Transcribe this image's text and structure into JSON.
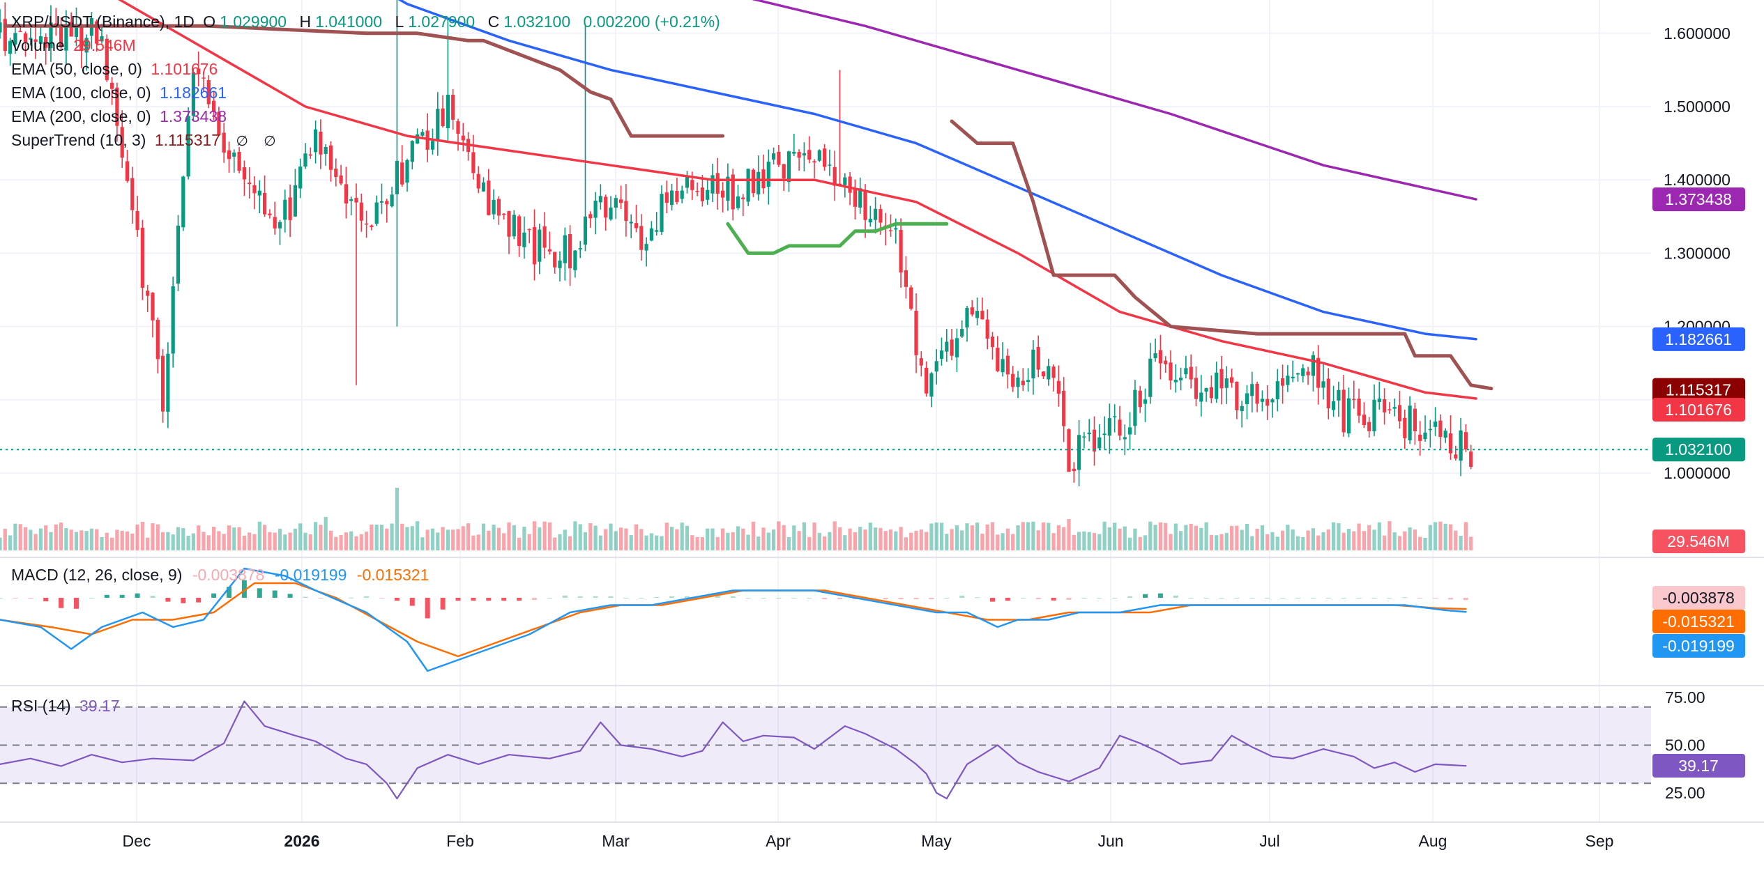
{
  "header": {
    "symbol": "XRP/USDT (Binance), 1D",
    "open_label": "O",
    "open": "1.029900",
    "high_label": "H",
    "high": "1.041000",
    "low_label": "L",
    "low": "1.027900",
    "close_label": "C",
    "close": "1.032100",
    "change": "0.002200 (+0.21%)"
  },
  "indicators": {
    "volume": {
      "label": "Volume",
      "value": "29.546M"
    },
    "ema50": {
      "label": "EMA (50, close, 0)",
      "value": "1.101676"
    },
    "ema100": {
      "label": "EMA (100, close, 0)",
      "value": "1.182661"
    },
    "ema200": {
      "label": "EMA (200, close, 0)",
      "value": "1.373438"
    },
    "supertrend": {
      "label": "SuperTrend (10, 3)",
      "value": "1.115317",
      "glyph1": "∅",
      "glyph2": "∅"
    },
    "macd": {
      "label": "MACD (12, 26, close, 9)",
      "hist": "-0.003878",
      "macd": "-0.019199",
      "signal": "-0.015321"
    },
    "rsi": {
      "label": "RSI (14)",
      "value": "39.17"
    }
  },
  "colors": {
    "up": "#089981",
    "down": "#f23645",
    "ema50": "#f23645",
    "ema100": "#2962ff",
    "ema200": "#9c27b0",
    "supertrend_down": "#a05252",
    "supertrend_up": "#4caf50",
    "macd": "#2196f3",
    "signal": "#ff6d00",
    "rsi": "#7e57c2"
  },
  "chart_data": [
    {
      "type": "candlestick",
      "title": "XRP/USDT (Binance), 1D",
      "x_ticks": [
        "Dec",
        "2026",
        "Feb",
        "Mar",
        "Apr",
        "May",
        "Jun",
        "Jul",
        "Aug",
        "Sep"
      ],
      "y_ticks": [
        "1.000000",
        "1.100000",
        "1.200000",
        "1.300000",
        "1.400000",
        "1.500000",
        "1.600000"
      ],
      "ylim": [
        0.97,
        1.64
      ],
      "last_price": "1.032100",
      "price_path": [
        [
          0,
          1.6
        ],
        [
          20,
          1.6
        ],
        [
          32,
          1.1
        ],
        [
          38,
          1.55
        ],
        [
          48,
          1.38
        ],
        [
          56,
          1.35
        ],
        [
          62,
          1.45
        ],
        [
          72,
          1.35
        ],
        [
          80,
          1.42
        ],
        [
          88,
          1.5
        ],
        [
          96,
          1.36
        ],
        [
          104,
          1.31
        ],
        [
          112,
          1.3
        ],
        [
          118,
          1.38
        ],
        [
          126,
          1.32
        ],
        [
          134,
          1.4
        ],
        [
          144,
          1.38
        ],
        [
          152,
          1.42
        ],
        [
          160,
          1.44
        ],
        [
          168,
          1.38
        ],
        [
          176,
          1.32
        ],
        [
          182,
          1.1
        ],
        [
          190,
          1.22
        ],
        [
          198,
          1.13
        ],
        [
          206,
          1.16
        ],
        [
          210,
          1.02
        ],
        [
          220,
          1.06
        ],
        [
          228,
          1.16
        ],
        [
          236,
          1.12
        ],
        [
          248,
          1.1
        ],
        [
          256,
          1.16
        ],
        [
          264,
          1.08
        ],
        [
          272,
          1.08
        ],
        [
          280,
          1.06
        ],
        [
          288,
          1.032
        ]
      ],
      "ema50": [
        [
          0,
          1.72
        ],
        [
          20,
          1.66
        ],
        [
          40,
          1.58
        ],
        [
          60,
          1.5
        ],
        [
          80,
          1.46
        ],
        [
          100,
          1.44
        ],
        [
          120,
          1.42
        ],
        [
          140,
          1.4
        ],
        [
          160,
          1.4
        ],
        [
          180,
          1.37
        ],
        [
          200,
          1.3
        ],
        [
          220,
          1.22
        ],
        [
          240,
          1.18
        ],
        [
          260,
          1.15
        ],
        [
          280,
          1.11
        ],
        [
          290,
          1.101676
        ]
      ],
      "ema100": [
        [
          60,
          1.72
        ],
        [
          80,
          1.64
        ],
        [
          100,
          1.59
        ],
        [
          120,
          1.55
        ],
        [
          140,
          1.52
        ],
        [
          160,
          1.49
        ],
        [
          180,
          1.45
        ],
        [
          200,
          1.39
        ],
        [
          220,
          1.33
        ],
        [
          240,
          1.27
        ],
        [
          260,
          1.22
        ],
        [
          280,
          1.19
        ],
        [
          290,
          1.182661
        ]
      ],
      "ema200": [
        [
          110,
          1.72
        ],
        [
          140,
          1.66
        ],
        [
          170,
          1.61
        ],
        [
          200,
          1.55
        ],
        [
          230,
          1.49
        ],
        [
          260,
          1.42
        ],
        [
          290,
          1.373438
        ]
      ],
      "supertrend": [
        {
          "trend": "down",
          "points": [
            [
              1,
              1.61
            ],
            [
              40,
              1.61
            ],
            [
              41,
              1.61
            ],
            [
              72,
              1.6
            ],
            [
              75,
              1.6
            ],
            [
              82,
              1.6
            ],
            [
              92,
              1.59
            ],
            [
              95,
              1.59
            ],
            [
              110,
              1.55
            ],
            [
              116,
              1.52
            ],
            [
              120,
              1.51
            ],
            [
              124,
              1.46
            ],
            [
              142,
              1.46
            ]
          ]
        },
        {
          "trend": "up",
          "points": [
            [
              143,
              1.34
            ],
            [
              147,
              1.3
            ],
            [
              152,
              1.3
            ],
            [
              155,
              1.31
            ],
            [
              165,
              1.31
            ],
            [
              168,
              1.33
            ],
            [
              172,
              1.33
            ],
            [
              176,
              1.34
            ],
            [
              186,
              1.34
            ]
          ]
        },
        {
          "trend": "down",
          "points": [
            [
              187,
              1.48
            ],
            [
              192,
              1.45
            ],
            [
              194,
              1.45
            ],
            [
              195,
              1.45
            ],
            [
              199,
              1.45
            ],
            [
              203,
              1.37
            ],
            [
              207,
              1.27
            ],
            [
              219,
              1.27
            ],
            [
              223,
              1.24
            ],
            [
              230,
              1.2
            ],
            [
              247,
              1.19
            ],
            [
              255,
              1.19
            ],
            [
              276,
              1.19
            ],
            [
              278,
              1.16
            ],
            [
              285,
              1.16
            ],
            [
              289,
              1.12
            ],
            [
              293,
              1.115317
            ]
          ]
        }
      ]
    },
    {
      "type": "bar",
      "name": "Volume",
      "last": "29.546M",
      "spikes": [
        [
          78,
          3.0
        ],
        [
          64,
          1.6
        ],
        [
          116,
          1.3
        ],
        [
          170,
          1.0
        ],
        [
          188,
          1.2
        ],
        [
          200,
          1.2
        ],
        [
          208,
          1.2
        ],
        [
          210,
          1.5
        ]
      ]
    },
    {
      "type": "line",
      "name": "MACD (12, 26, close, 9)",
      "hist_last": "-0.003878",
      "macd_last": "-0.019199",
      "signal_last": "-0.015321",
      "macd": [
        [
          0,
          -0.03
        ],
        [
          8,
          -0.04
        ],
        [
          14,
          -0.07
        ],
        [
          20,
          -0.04
        ],
        [
          28,
          -0.02
        ],
        [
          34,
          -0.04
        ],
        [
          40,
          -0.03
        ],
        [
          48,
          0.04
        ],
        [
          56,
          0.03
        ],
        [
          62,
          0.01
        ],
        [
          72,
          -0.02
        ],
        [
          80,
          -0.06
        ],
        [
          84,
          -0.1
        ],
        [
          88,
          -0.09
        ],
        [
          96,
          -0.07
        ],
        [
          104,
          -0.05
        ],
        [
          112,
          -0.02
        ],
        [
          120,
          -0.01
        ],
        [
          128,
          -0.01
        ],
        [
          136,
          0.0
        ],
        [
          144,
          0.01
        ],
        [
          152,
          0.01
        ],
        [
          160,
          0.01
        ],
        [
          168,
          0.0
        ],
        [
          176,
          -0.01
        ],
        [
          184,
          -0.02
        ],
        [
          190,
          -0.02
        ],
        [
          196,
          -0.04
        ],
        [
          200,
          -0.03
        ],
        [
          206,
          -0.03
        ],
        [
          212,
          -0.02
        ],
        [
          220,
          -0.02
        ],
        [
          228,
          -0.01
        ],
        [
          236,
          -0.01
        ],
        [
          244,
          -0.01
        ],
        [
          252,
          -0.01
        ],
        [
          260,
          -0.01
        ],
        [
          268,
          -0.01
        ],
        [
          276,
          -0.01
        ],
        [
          284,
          -0.017
        ],
        [
          288,
          -0.019199
        ]
      ],
      "signal": [
        [
          0,
          -0.03
        ],
        [
          10,
          -0.04
        ],
        [
          18,
          -0.05
        ],
        [
          26,
          -0.03
        ],
        [
          34,
          -0.03
        ],
        [
          42,
          -0.02
        ],
        [
          50,
          0.02
        ],
        [
          58,
          0.02
        ],
        [
          66,
          0.0
        ],
        [
          74,
          -0.03
        ],
        [
          82,
          -0.06
        ],
        [
          90,
          -0.08
        ],
        [
          98,
          -0.06
        ],
        [
          106,
          -0.04
        ],
        [
          114,
          -0.02
        ],
        [
          122,
          -0.01
        ],
        [
          130,
          -0.01
        ],
        [
          138,
          0.0
        ],
        [
          146,
          0.01
        ],
        [
          154,
          0.01
        ],
        [
          162,
          0.01
        ],
        [
          170,
          0.0
        ],
        [
          178,
          -0.01
        ],
        [
          186,
          -0.02
        ],
        [
          194,
          -0.03
        ],
        [
          202,
          -0.03
        ],
        [
          210,
          -0.02
        ],
        [
          218,
          -0.02
        ],
        [
          226,
          -0.02
        ],
        [
          234,
          -0.01
        ],
        [
          242,
          -0.01
        ],
        [
          250,
          -0.01
        ],
        [
          258,
          -0.01
        ],
        [
          266,
          -0.01
        ],
        [
          274,
          -0.01
        ],
        [
          282,
          -0.014
        ],
        [
          288,
          -0.015321
        ]
      ]
    },
    {
      "type": "line",
      "name": "RSI (14)",
      "last": "39.17",
      "y_ticks": [
        "25.00",
        "50.00",
        "75.00"
      ],
      "bands": [
        30,
        50,
        70
      ],
      "rsi": [
        [
          0,
          40
        ],
        [
          6,
          43
        ],
        [
          12,
          39
        ],
        [
          18,
          45
        ],
        [
          24,
          41
        ],
        [
          30,
          43
        ],
        [
          38,
          42
        ],
        [
          44,
          51
        ],
        [
          48,
          73
        ],
        [
          52,
          60
        ],
        [
          58,
          55
        ],
        [
          62,
          52
        ],
        [
          68,
          43
        ],
        [
          72,
          40
        ],
        [
          76,
          30
        ],
        [
          78,
          22
        ],
        [
          82,
          38
        ],
        [
          88,
          45
        ],
        [
          94,
          40
        ],
        [
          100,
          45
        ],
        [
          108,
          43
        ],
        [
          114,
          47
        ],
        [
          118,
          62
        ],
        [
          122,
          50
        ],
        [
          128,
          48
        ],
        [
          134,
          44
        ],
        [
          138,
          47
        ],
        [
          142,
          62
        ],
        [
          146,
          52
        ],
        [
          150,
          55
        ],
        [
          156,
          54
        ],
        [
          160,
          48
        ],
        [
          166,
          60
        ],
        [
          170,
          56
        ],
        [
          176,
          48
        ],
        [
          180,
          40
        ],
        [
          182,
          35
        ],
        [
          184,
          25
        ],
        [
          186,
          22
        ],
        [
          190,
          40
        ],
        [
          196,
          50
        ],
        [
          200,
          41
        ],
        [
          204,
          36
        ],
        [
          210,
          31
        ],
        [
          216,
          38
        ],
        [
          220,
          55
        ],
        [
          224,
          51
        ],
        [
          228,
          46
        ],
        [
          232,
          40
        ],
        [
          238,
          42
        ],
        [
          242,
          55
        ],
        [
          246,
          49
        ],
        [
          250,
          44
        ],
        [
          254,
          43
        ],
        [
          260,
          48
        ],
        [
          266,
          44
        ],
        [
          270,
          38
        ],
        [
          274,
          41
        ],
        [
          278,
          36
        ],
        [
          282,
          40
        ],
        [
          288,
          39.17
        ]
      ]
    }
  ]
}
